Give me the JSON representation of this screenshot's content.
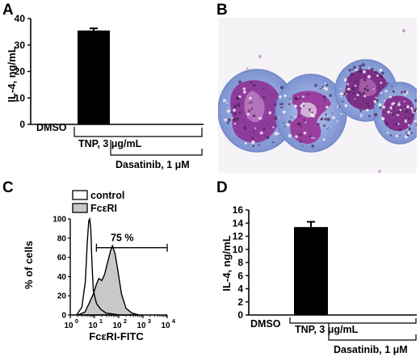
{
  "panels": {
    "A": "A",
    "B": "B",
    "C": "C",
    "D": "D"
  },
  "colors": {
    "bar": "#000000",
    "fill_fceri": "#c8c8c8",
    "cell_cytoplasm": "#8da8dc",
    "cell_nucleus": "#8e3c9c",
    "micrograph_background": "#f6f3f7"
  },
  "chart_data": [
    {
      "panel": "A",
      "type": "bar",
      "categories": [
        "DMSO",
        "TNP",
        "Dasatinib",
        "TNP + Dasatinib"
      ],
      "values": [
        0.1,
        35.5,
        0.1,
        0.1
      ],
      "errors": [
        0,
        0.8,
        0,
        0
      ],
      "ylabel": "IL-4, ng/mL",
      "ylim": [
        0,
        40
      ],
      "yticks": [
        "0",
        "10",
        "20",
        "30",
        "40"
      ],
      "labels": {
        "dmso": "DMSO",
        "tnp": "TNP, 3 μg/mL",
        "dasatinib": "Dasatinib, 1 μM"
      }
    },
    {
      "panel": "C",
      "type": "area",
      "xlabel": "FcεRI-FITC",
      "ylabel": "% of cells",
      "x_scale": "log",
      "xlim": [
        1,
        10000
      ],
      "ylim": [
        0,
        100
      ],
      "yticks": [
        "0",
        "20",
        "40",
        "60",
        "80",
        "100"
      ],
      "xticks": [
        "10",
        "10",
        "10",
        "10",
        "10"
      ],
      "xtick_exponents": [
        "0",
        "1",
        "2",
        "3",
        "4"
      ],
      "series": [
        {
          "name": "control",
          "x": [
            1.8,
            3,
            4.2,
            5,
            5.8,
            6.3,
            7,
            7.8,
            9,
            12,
            18,
            30,
            60,
            100
          ],
          "y": [
            0,
            8,
            35,
            75,
            98,
            100,
            90,
            55,
            25,
            12,
            6,
            2,
            1,
            0
          ]
        },
        {
          "name": "FcεRI",
          "x": [
            2,
            4,
            6,
            9,
            12,
            15,
            20,
            26,
            35,
            45,
            55,
            70,
            90,
            130,
            200,
            350,
            700
          ],
          "y": [
            0,
            3,
            12,
            22,
            32,
            38,
            36,
            42,
            55,
            66,
            72,
            64,
            48,
            22,
            7,
            2,
            0
          ]
        }
      ],
      "gate": {
        "from": 12,
        "to": 10000,
        "label": "75 %"
      }
    },
    {
      "panel": "D",
      "type": "bar",
      "categories": [
        "DMSO",
        "TNP",
        "Dasatinib",
        "TNP + Dasatinib"
      ],
      "values": [
        0.05,
        13.4,
        0.05,
        0.05
      ],
      "errors": [
        0,
        0.8,
        0,
        0
      ],
      "ylabel": "IL-4, ng/mL",
      "ylim": [
        0,
        16
      ],
      "yticks": [
        "0",
        "2",
        "4",
        "6",
        "8",
        "10",
        "12",
        "14",
        "16"
      ],
      "labels": {
        "dmso": "DMSO",
        "tnp": "TNP, 3 μg/mL",
        "dasatinib": "Dasatinib, 1 μM"
      }
    }
  ]
}
